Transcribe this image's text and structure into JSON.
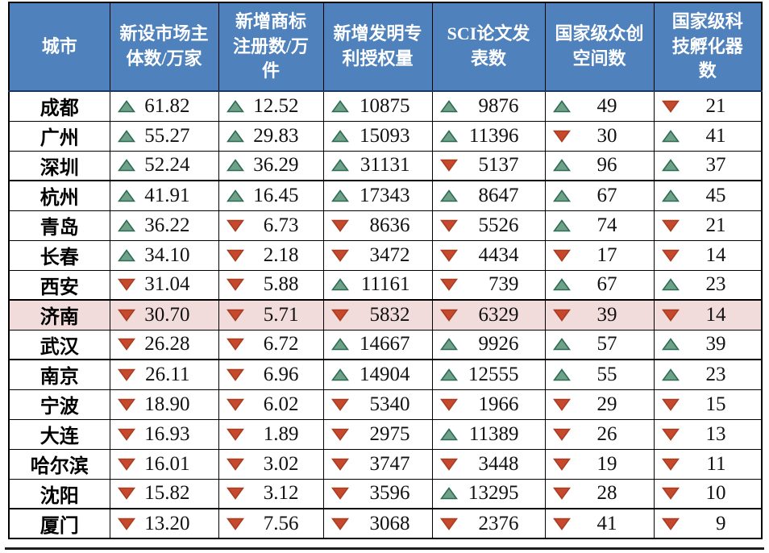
{
  "colors": {
    "header_bg": "#4F81BD",
    "header_text": "#FFFFFF",
    "highlight_row_bg": "#F2DCDB",
    "up_fill": "#6FA188",
    "up_stroke": "#2E6B54",
    "down_fill": "#C7492D",
    "down_stroke": "#A83D22",
    "grid_border": "#000000"
  },
  "table": {
    "headers": [
      "城市",
      "新设市场主体数/万家",
      "新增商标注册数/万件",
      "新增发明专利授权量",
      "SCI论文发表数",
      "国家级众创空间数",
      "国家级科技孵化器数"
    ],
    "rows": [
      {
        "city": "成都",
        "highlight": false,
        "cells": [
          {
            "dir": "up",
            "value": "61.82"
          },
          {
            "dir": "up",
            "value": "12.52"
          },
          {
            "dir": "up",
            "value": "10875"
          },
          {
            "dir": "up",
            "value": "9876"
          },
          {
            "dir": "up",
            "value": "49"
          },
          {
            "dir": "down",
            "value": "21"
          }
        ]
      },
      {
        "city": "广州",
        "highlight": false,
        "cells": [
          {
            "dir": "up",
            "value": "55.27"
          },
          {
            "dir": "up",
            "value": "29.83"
          },
          {
            "dir": "up",
            "value": "15093"
          },
          {
            "dir": "up",
            "value": "11396"
          },
          {
            "dir": "down",
            "value": "30"
          },
          {
            "dir": "up",
            "value": "41"
          }
        ]
      },
      {
        "city": "深圳",
        "highlight": false,
        "cells": [
          {
            "dir": "up",
            "value": "52.24"
          },
          {
            "dir": "up",
            "value": "36.29"
          },
          {
            "dir": "up",
            "value": "31131"
          },
          {
            "dir": "down",
            "value": "5137"
          },
          {
            "dir": "up",
            "value": "96"
          },
          {
            "dir": "up",
            "value": "37"
          }
        ]
      },
      {
        "city": "杭州",
        "highlight": false,
        "cells": [
          {
            "dir": "up",
            "value": "41.91"
          },
          {
            "dir": "up",
            "value": "16.45"
          },
          {
            "dir": "up",
            "value": "17343"
          },
          {
            "dir": "up",
            "value": "8647"
          },
          {
            "dir": "up",
            "value": "67"
          },
          {
            "dir": "up",
            "value": "45"
          }
        ]
      },
      {
        "city": "青岛",
        "highlight": false,
        "cells": [
          {
            "dir": "up",
            "value": "36.22"
          },
          {
            "dir": "down",
            "value": "6.73"
          },
          {
            "dir": "down",
            "value": "8636"
          },
          {
            "dir": "down",
            "value": "5526"
          },
          {
            "dir": "up",
            "value": "74"
          },
          {
            "dir": "down",
            "value": "21"
          }
        ]
      },
      {
        "city": "长春",
        "highlight": false,
        "cells": [
          {
            "dir": "up",
            "value": "34.10"
          },
          {
            "dir": "down",
            "value": "2.18"
          },
          {
            "dir": "down",
            "value": "3472"
          },
          {
            "dir": "down",
            "value": "4434"
          },
          {
            "dir": "down",
            "value": "17"
          },
          {
            "dir": "down",
            "value": "14"
          }
        ]
      },
      {
        "city": "西安",
        "highlight": false,
        "cells": [
          {
            "dir": "down",
            "value": "31.04"
          },
          {
            "dir": "down",
            "value": "5.88"
          },
          {
            "dir": "up",
            "value": "11161"
          },
          {
            "dir": "down",
            "value": "739"
          },
          {
            "dir": "up",
            "value": "67"
          },
          {
            "dir": "up",
            "value": "23"
          }
        ]
      },
      {
        "city": "济南",
        "highlight": true,
        "cells": [
          {
            "dir": "down",
            "value": "30.70"
          },
          {
            "dir": "down",
            "value": "5.71"
          },
          {
            "dir": "down",
            "value": "5832"
          },
          {
            "dir": "down",
            "value": "6329"
          },
          {
            "dir": "down",
            "value": "39"
          },
          {
            "dir": "down",
            "value": "14"
          }
        ]
      },
      {
        "city": "武汉",
        "highlight": false,
        "cells": [
          {
            "dir": "down",
            "value": "26.28"
          },
          {
            "dir": "down",
            "value": "6.72"
          },
          {
            "dir": "up",
            "value": "14667"
          },
          {
            "dir": "up",
            "value": "9926"
          },
          {
            "dir": "up",
            "value": "57"
          },
          {
            "dir": "up",
            "value": "39"
          }
        ]
      },
      {
        "city": "南京",
        "highlight": false,
        "cells": [
          {
            "dir": "down",
            "value": "26.11"
          },
          {
            "dir": "down",
            "value": "6.96"
          },
          {
            "dir": "up",
            "value": "14904"
          },
          {
            "dir": "up",
            "value": "12555"
          },
          {
            "dir": "up",
            "value": "55"
          },
          {
            "dir": "up",
            "value": "23"
          }
        ]
      },
      {
        "city": "宁波",
        "highlight": false,
        "cells": [
          {
            "dir": "down",
            "value": "18.90"
          },
          {
            "dir": "down",
            "value": "6.02"
          },
          {
            "dir": "down",
            "value": "5340"
          },
          {
            "dir": "down",
            "value": "1966"
          },
          {
            "dir": "down",
            "value": "29"
          },
          {
            "dir": "down",
            "value": "15"
          }
        ]
      },
      {
        "city": "大连",
        "highlight": false,
        "cells": [
          {
            "dir": "down",
            "value": "16.93"
          },
          {
            "dir": "down",
            "value": "1.89"
          },
          {
            "dir": "down",
            "value": "2975"
          },
          {
            "dir": "up",
            "value": "11389"
          },
          {
            "dir": "down",
            "value": "26"
          },
          {
            "dir": "down",
            "value": "13"
          }
        ]
      },
      {
        "city": "哈尔滨",
        "highlight": false,
        "cells": [
          {
            "dir": "down",
            "value": "16.01"
          },
          {
            "dir": "down",
            "value": "3.02"
          },
          {
            "dir": "down",
            "value": "3747"
          },
          {
            "dir": "down",
            "value": "3448"
          },
          {
            "dir": "down",
            "value": "19"
          },
          {
            "dir": "down",
            "value": "11"
          }
        ]
      },
      {
        "city": "沈阳",
        "highlight": false,
        "cells": [
          {
            "dir": "down",
            "value": "15.82"
          },
          {
            "dir": "down",
            "value": "3.12"
          },
          {
            "dir": "down",
            "value": "3596"
          },
          {
            "dir": "up",
            "value": "13295"
          },
          {
            "dir": "down",
            "value": "28"
          },
          {
            "dir": "down",
            "value": "10"
          }
        ]
      },
      {
        "city": "厦门",
        "highlight": false,
        "cells": [
          {
            "dir": "down",
            "value": "13.20"
          },
          {
            "dir": "down",
            "value": "7.56"
          },
          {
            "dir": "down",
            "value": "3068"
          },
          {
            "dir": "down",
            "value": "2376"
          },
          {
            "dir": "down",
            "value": "41"
          },
          {
            "dir": "down",
            "value": "9"
          }
        ]
      }
    ]
  }
}
